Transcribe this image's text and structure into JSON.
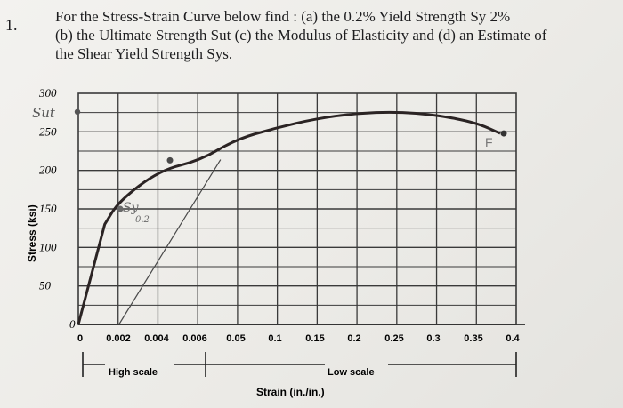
{
  "problem": {
    "number": "1.",
    "line1": "For the Stress-Strain Curve below find : (a) the 0.2% Yield Strength Sy 2%",
    "line2": "(b) the Ultimate Strength Sut (c) the Modulus of Elasticity and (d) an Estimate of",
    "line3": "the Shear Yield Strength Sys."
  },
  "chart_data": {
    "type": "line",
    "title": "",
    "xlabel": "Strain (in./in.)",
    "ylabel": "Stress (ksi)",
    "y_ticks": [
      0,
      50,
      100,
      150,
      200,
      250,
      300
    ],
    "ylim": [
      0,
      300
    ],
    "x_ticks_high_scale": [
      "0",
      "0.002",
      "0.004",
      "0.006"
    ],
    "x_ticks_low_scale": [
      "0.05",
      "0.1",
      "0.15",
      "0.2",
      "0.25",
      "0.3",
      "0.35",
      "0.4"
    ],
    "scale_labels": {
      "high": "High scale",
      "low": "Low scale"
    },
    "grid": true,
    "series": [
      {
        "name": "",
        "points": [
          {
            "x": 0,
            "y": 0,
            "scale": "high"
          },
          {
            "x": 0.0013,
            "y": 130,
            "scale": "high"
          },
          {
            "x": 0.002,
            "y": 160,
            "scale": "high"
          },
          {
            "x": 0.004,
            "y": 200,
            "scale": "high"
          },
          {
            "x": 0.006,
            "y": 213,
            "scale": "high"
          },
          {
            "x": 0.05,
            "y": 240,
            "scale": "low"
          },
          {
            "x": 0.1,
            "y": 255,
            "scale": "low"
          },
          {
            "x": 0.15,
            "y": 267,
            "scale": "low"
          },
          {
            "x": 0.2,
            "y": 274,
            "scale": "low"
          },
          {
            "x": 0.25,
            "y": 276,
            "scale": "low"
          },
          {
            "x": 0.3,
            "y": 272,
            "scale": "low"
          },
          {
            "x": 0.35,
            "y": 262,
            "scale": "low"
          },
          {
            "x": 0.38,
            "y": 248,
            "scale": "low"
          }
        ]
      }
    ],
    "offset_line": {
      "strain_start": 0.002,
      "strain_end": 0.007,
      "stress_end": 214,
      "scale": "high"
    },
    "annotations": [
      "Sut",
      "Sy",
      "0.2",
      "F"
    ]
  }
}
